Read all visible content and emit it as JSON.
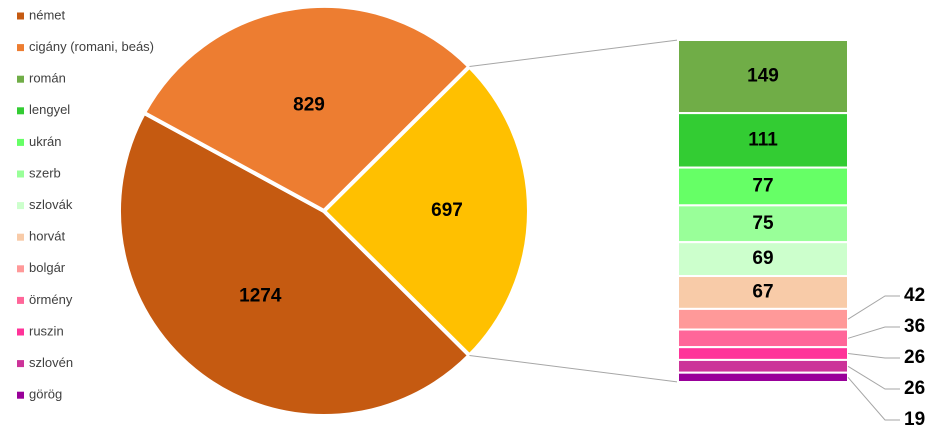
{
  "chart_data": {
    "type": "bar-of-pie",
    "pie": {
      "categories": [
        "német",
        "cigány (romani, beás)",
        null
      ],
      "values": [
        1274,
        829,
        697
      ],
      "colors": [
        "#c55a11",
        "#ed7d31",
        "#ffc000"
      ]
    },
    "bar": {
      "categories": [
        "román",
        "lengyel",
        "ukrán",
        "szerb",
        "szlovák",
        "horvát",
        "bolgár",
        "örmény",
        "ruszin",
        "szlovén",
        "görög"
      ],
      "values": [
        149,
        111,
        77,
        75,
        69,
        67,
        42,
        36,
        26,
        26,
        19
      ],
      "colors": [
        "#70ad47",
        "#33cc33",
        "#66ff66",
        "#99ff99",
        "#ccffcc",
        "#f8cba8",
        "#ff9999",
        "#ff6699",
        "#ff3399",
        "#cc3399",
        "#990099"
      ]
    }
  }
}
